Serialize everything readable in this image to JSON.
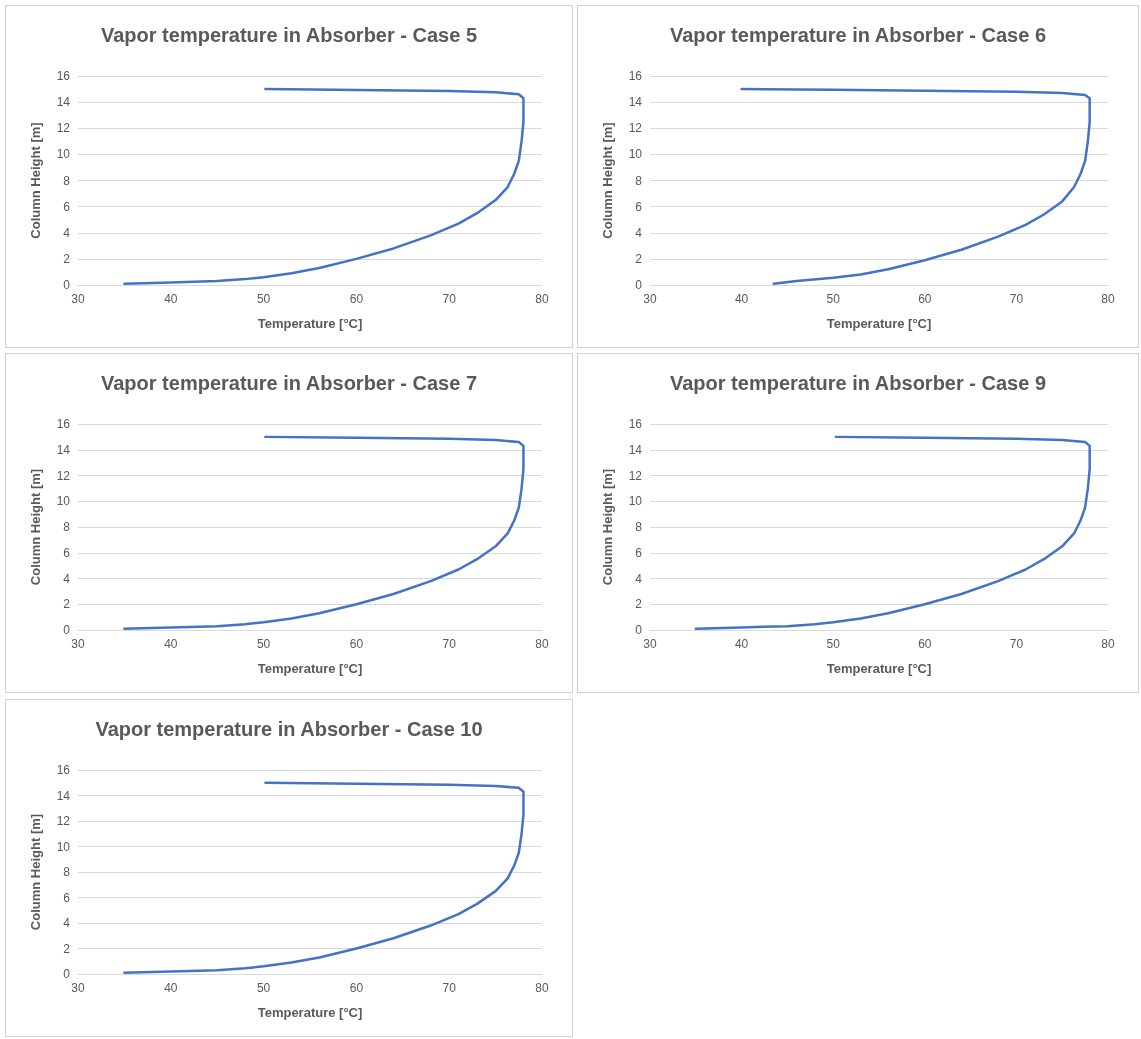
{
  "chart_data": [
    {
      "type": "line",
      "title": "Vapor temperature in Absorber - Case 5",
      "xlabel": "Temperature [°C]",
      "ylabel": "Column Height [m]",
      "xlim": [
        30,
        80
      ],
      "xticks": [
        30,
        40,
        50,
        60,
        70,
        80
      ],
      "ylim": [
        0,
        16
      ],
      "yticks": [
        0,
        2,
        4,
        6,
        8,
        10,
        12,
        14,
        16
      ],
      "grid": "y",
      "marker": "none",
      "line_style": "solid",
      "series": [
        {
          "color": "#4472c4",
          "x": [
            35,
            40,
            45,
            48,
            50,
            53,
            56,
            60,
            64,
            68,
            71,
            73,
            75,
            76.3,
            77,
            77.5,
            77.8,
            78,
            78,
            77.5,
            75,
            70,
            60,
            50.2
          ],
          "values": [
            0.1,
            0.2,
            0.3,
            0.45,
            0.6,
            0.9,
            1.3,
            2,
            2.8,
            3.8,
            4.7,
            5.5,
            6.5,
            7.5,
            8.5,
            9.5,
            11,
            12.5,
            14.3,
            14.6,
            14.75,
            14.85,
            14.93,
            15
          ]
        }
      ]
    },
    {
      "type": "line",
      "title": "Vapor temperature in Absorber - Case 6",
      "xlabel": "Temperature [°C]",
      "ylabel": "Column Height [m]",
      "xlim": [
        30,
        80
      ],
      "xticks": [
        30,
        40,
        50,
        60,
        70,
        80
      ],
      "ylim": [
        0,
        16
      ],
      "yticks": [
        0,
        2,
        4,
        6,
        8,
        10,
        12,
        14,
        16
      ],
      "grid": "y",
      "marker": "none",
      "line_style": "solid",
      "series": [
        {
          "color": "#4472c4",
          "x": [
            43.5,
            46,
            50,
            53,
            56,
            60,
            64,
            68,
            71,
            73,
            75,
            76.3,
            77,
            77.5,
            77.8,
            78,
            78,
            77.5,
            75,
            70,
            60,
            50,
            40
          ],
          "values": [
            0.1,
            0.3,
            0.55,
            0.8,
            1.2,
            1.9,
            2.7,
            3.7,
            4.6,
            5.4,
            6.4,
            7.5,
            8.5,
            9.5,
            11,
            12.5,
            14.3,
            14.55,
            14.7,
            14.8,
            14.88,
            14.95,
            15
          ]
        }
      ]
    },
    {
      "type": "line",
      "title": "Vapor temperature in Absorber - Case 7",
      "xlabel": "Temperature [°C]",
      "ylabel": "Column Height [m]",
      "xlim": [
        30,
        80
      ],
      "xticks": [
        30,
        40,
        50,
        60,
        70,
        80
      ],
      "ylim": [
        0,
        16
      ],
      "yticks": [
        0,
        2,
        4,
        6,
        8,
        10,
        12,
        14,
        16
      ],
      "grid": "y",
      "marker": "none",
      "line_style": "solid",
      "series": [
        {
          "color": "#4472c4",
          "x": [
            35,
            40,
            45,
            48,
            50,
            53,
            56,
            60,
            64,
            68,
            71,
            73,
            75,
            76.3,
            77,
            77.5,
            77.8,
            78,
            78,
            77.5,
            75,
            70,
            60,
            50.2
          ],
          "values": [
            0.1,
            0.2,
            0.3,
            0.45,
            0.6,
            0.9,
            1.3,
            2,
            2.8,
            3.8,
            4.7,
            5.5,
            6.5,
            7.5,
            8.5,
            9.5,
            11,
            12.5,
            14.3,
            14.6,
            14.75,
            14.85,
            14.93,
            15
          ]
        }
      ]
    },
    {
      "type": "line",
      "title": "Vapor temperature in Absorber - Case 9",
      "xlabel": "Temperature [°C]",
      "ylabel": "Column Height [m]",
      "xlim": [
        30,
        80
      ],
      "xticks": [
        30,
        40,
        50,
        60,
        70,
        80
      ],
      "ylim": [
        0,
        16
      ],
      "yticks": [
        0,
        2,
        4,
        6,
        8,
        10,
        12,
        14,
        16
      ],
      "grid": "y",
      "marker": "none",
      "line_style": "solid",
      "series": [
        {
          "color": "#4472c4",
          "x": [
            35,
            40,
            45,
            48,
            50,
            53,
            56,
            60,
            64,
            68,
            71,
            73,
            75,
            76.3,
            77,
            77.5,
            77.8,
            78,
            78,
            77.5,
            75,
            70,
            60,
            50.3
          ],
          "values": [
            0.1,
            0.2,
            0.3,
            0.45,
            0.6,
            0.9,
            1.3,
            2,
            2.8,
            3.8,
            4.7,
            5.5,
            6.5,
            7.5,
            8.5,
            9.5,
            11,
            12.5,
            14.3,
            14.6,
            14.75,
            14.85,
            14.93,
            15
          ]
        }
      ]
    },
    {
      "type": "line",
      "title": "Vapor temperature in Absorber - Case 10",
      "xlabel": "Temperature [°C]",
      "ylabel": "Column Height [m]",
      "xlim": [
        30,
        80
      ],
      "xticks": [
        30,
        40,
        50,
        60,
        70,
        80
      ],
      "ylim": [
        0,
        16
      ],
      "yticks": [
        0,
        2,
        4,
        6,
        8,
        10,
        12,
        14,
        16
      ],
      "grid": "y",
      "marker": "none",
      "line_style": "solid",
      "series": [
        {
          "color": "#4472c4",
          "x": [
            35,
            40,
            45,
            48,
            50,
            53,
            56,
            60,
            64,
            68,
            71,
            73,
            75,
            76.3,
            77,
            77.5,
            77.8,
            78,
            78,
            77.5,
            75,
            70,
            60,
            50.2
          ],
          "values": [
            0.1,
            0.2,
            0.3,
            0.45,
            0.6,
            0.9,
            1.3,
            2,
            2.8,
            3.8,
            4.7,
            5.5,
            6.5,
            7.5,
            8.5,
            9.5,
            11,
            12.5,
            14.3,
            14.6,
            14.75,
            14.85,
            14.93,
            15
          ]
        }
      ]
    }
  ]
}
